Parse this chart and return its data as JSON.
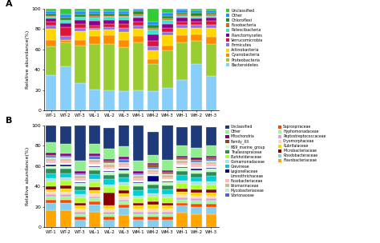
{
  "categories": [
    "WT-1",
    "WT-2",
    "WT-3",
    "WL-1",
    "WL-2",
    "WL-3",
    "WM-1",
    "WM-2",
    "WM-3",
    "WH-1",
    "WH-2",
    "WH-3"
  ],
  "stacks_A": [
    "Bacteroidetes",
    "Proteobacteria",
    "Cyanobacteria",
    "Actinobacteria",
    "Firmicutes",
    "Verrucomicrobia",
    "Planctomycetes",
    "Patescibacteria",
    "Fusobacteria",
    "Chloroflexi",
    "Other",
    "Unclassified"
  ],
  "colors_A": [
    "#7ec8e3",
    "#9acd32",
    "#ff8c00",
    "#ffd700",
    "#9370db",
    "#dc143c",
    "#8b008b",
    "#00ced1",
    "#d2691e",
    "#228b22",
    "#1e90ff",
    "#32cd32"
  ],
  "data_A": {
    "Bacteroidetes": [
      35,
      43,
      27,
      21,
      20,
      19,
      20,
      19,
      22,
      30,
      46,
      34
    ],
    "Proteobacteria": [
      28,
      24,
      37,
      44,
      45,
      43,
      47,
      27,
      37,
      37,
      22,
      31
    ],
    "Cyanobacteria": [
      6,
      2,
      5,
      8,
      9,
      7,
      6,
      4,
      5,
      7,
      7,
      7
    ],
    "Actinobacteria": [
      11,
      0,
      9,
      6,
      5,
      8,
      7,
      9,
      10,
      7,
      6,
      9
    ],
    "Firmicutes": [
      3,
      4,
      3,
      2,
      3,
      4,
      3,
      4,
      3,
      3,
      3,
      3
    ],
    "Verrucomicrobia": [
      4,
      9,
      4,
      2,
      3,
      4,
      4,
      5,
      4,
      3,
      3,
      4
    ],
    "Planctomycetes": [
      3,
      4,
      4,
      5,
      4,
      4,
      4,
      7,
      4,
      4,
      3,
      3
    ],
    "Patescibacteria": [
      2,
      2,
      2,
      3,
      3,
      3,
      2,
      4,
      4,
      2,
      2,
      2
    ],
    "Fusobacteria": [
      1,
      1,
      1,
      2,
      1,
      1,
      1,
      2,
      1,
      1,
      1,
      1
    ],
    "Chloroflexi": [
      2,
      2,
      2,
      2,
      2,
      2,
      3,
      3,
      3,
      2,
      3,
      2
    ],
    "Other": [
      2,
      3,
      3,
      2,
      2,
      2,
      2,
      3,
      3,
      3,
      2,
      2
    ],
    "Unclassified": [
      3,
      6,
      3,
      3,
      3,
      3,
      1,
      13,
      4,
      1,
      2,
      2
    ]
  },
  "stacks_B": [
    "Flavobacteriaceae",
    "Rhodobacteraceae",
    "Saprospiraceae",
    "Hyphomonadaceae",
    "Peptostreptococcaceae",
    "Cryomorphaceae",
    "Rubritalaceae",
    "Microbacteriaceae",
    "Burkholderaceae",
    "Comamonadaceae",
    "Grevineae",
    "Thalasospraceae",
    "NS9_marine_group",
    "Legionellaceae",
    "Limnothrichaceae",
    "Fusobacteriaceae",
    "Idiomarinaceae",
    "Mycobacteriaceae",
    "Vibrionaceae",
    "Family_XII",
    "Mitochondria",
    "Other",
    "Unclassified"
  ],
  "colors_B": {
    "Unclassified": "#2166ac",
    "Other": "#74c476",
    "Mitochondria": "#7b2d8b",
    "Family_XII": "#8c4513",
    "NS9_marine_group": "#c7e9c0",
    "Thalasospraceae": "#3cb371",
    "Burkholderaceae": "#7fbc41",
    "Comamonadaceae": "#add8e6",
    "Grevineae": "#00bfff",
    "Legionellaceae": "#191970",
    "Limnothrichaceae": "#f5f5dc",
    "Fusobacteriaceae": "#ffb6c1",
    "Idiomarinaceae": "#deb887",
    "Mycobacteriaceae": "#c8e6c9",
    "Vibrionaceae": "#4169e1",
    "Saprospiraceae": "#dc143c",
    "Hyphomonadaceae": "#90ee90",
    "Peptostreptococcaceae": "#da70d6",
    "Cryomorphaceae": "#ffdead",
    "Rubritalaceae": "#ffd700",
    "Microbacteriaceae": "#b22222",
    "Rhodobacteraceae": "#87cefa",
    "Flavobacteriaceae": "#ff8c00"
  },
  "data_B": {
    "Flavobacteriaceae": [
      17,
      17,
      0,
      15,
      0,
      12,
      0,
      0,
      0,
      14,
      13,
      13
    ],
    "Rhodobacteraceae": [
      7,
      7,
      7,
      7,
      7,
      7,
      7,
      7,
      7,
      7,
      7,
      7
    ],
    "Saprospiraceae": [
      3,
      3,
      3,
      3,
      3,
      3,
      3,
      3,
      3,
      3,
      3,
      3
    ],
    "Hyphomonadaceae": [
      3,
      3,
      3,
      3,
      3,
      3,
      3,
      3,
      3,
      3,
      3,
      3
    ],
    "Peptostreptococcaceae": [
      2,
      2,
      2,
      2,
      2,
      2,
      2,
      2,
      2,
      2,
      2,
      2
    ],
    "Cryomorphaceae": [
      3,
      3,
      3,
      3,
      3,
      3,
      3,
      3,
      3,
      3,
      3,
      3
    ],
    "Rubritalaceae": [
      2,
      3,
      3,
      3,
      3,
      3,
      3,
      4,
      3,
      3,
      3,
      3
    ],
    "Microbacteriaceae": [
      3,
      3,
      3,
      3,
      13,
      3,
      3,
      3,
      3,
      3,
      3,
      3
    ],
    "Burkholderaceae": [
      5,
      5,
      5,
      5,
      5,
      5,
      4,
      5,
      5,
      5,
      5,
      5
    ],
    "Comamonadaceae": [
      3,
      3,
      3,
      3,
      3,
      3,
      3,
      3,
      3,
      3,
      3,
      3
    ],
    "Grevineae": [
      5,
      4,
      4,
      5,
      5,
      5,
      5,
      5,
      5,
      5,
      4,
      5
    ],
    "Thalasospraceae": [
      4,
      4,
      4,
      4,
      4,
      4,
      4,
      4,
      4,
      4,
      4,
      4
    ],
    "NS9_marine_group": [
      3,
      3,
      3,
      3,
      3,
      3,
      3,
      3,
      3,
      3,
      3,
      3
    ],
    "Legionellaceae": [
      1,
      1,
      1,
      1,
      1,
      1,
      1,
      5,
      1,
      1,
      1,
      1
    ],
    "Limnothrichaceae": [
      2,
      2,
      2,
      2,
      2,
      2,
      2,
      2,
      2,
      2,
      2,
      2
    ],
    "Fusobacteriaceae": [
      2,
      2,
      2,
      2,
      2,
      2,
      2,
      2,
      2,
      2,
      2,
      2
    ],
    "Idiomarinaceae": [
      2,
      2,
      2,
      2,
      2,
      2,
      2,
      2,
      2,
      2,
      2,
      2
    ],
    "Mycobacteriaceae": [
      1,
      1,
      1,
      1,
      2,
      1,
      1,
      1,
      1,
      1,
      1,
      1
    ],
    "Vibrionaceae": [
      2,
      1,
      1,
      2,
      1,
      2,
      1,
      2,
      1,
      1,
      1,
      2
    ],
    "Family_XII": [
      1,
      1,
      1,
      1,
      1,
      1,
      1,
      2,
      1,
      1,
      1,
      1
    ],
    "Mitochondria": [
      2,
      2,
      2,
      2,
      2,
      2,
      2,
      2,
      2,
      2,
      2,
      2
    ],
    "Other": [
      10,
      10,
      10,
      10,
      10,
      10,
      10,
      8,
      10,
      10,
      10,
      10
    ],
    "Unclassified": [
      17,
      17,
      35,
      18,
      20,
      22,
      35,
      22,
      35,
      18,
      22,
      18
    ]
  },
  "ylabel": "Relative abundance(%)"
}
